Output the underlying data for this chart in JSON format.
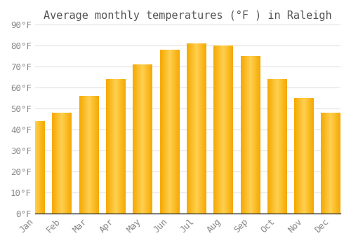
{
  "title": "Average monthly temperatures (°F ) in Raleigh",
  "months": [
    "Jan",
    "Feb",
    "Mar",
    "Apr",
    "May",
    "Jun",
    "Jul",
    "Aug",
    "Sep",
    "Oct",
    "Nov",
    "Dec"
  ],
  "values": [
    44,
    48,
    56,
    64,
    71,
    78,
    81,
    80,
    75,
    64,
    55,
    48
  ],
  "bar_color_left": "#F5A800",
  "bar_color_center": "#FFD050",
  "bar_color_right": "#F5A800",
  "ylim": [
    0,
    90
  ],
  "yticks": [
    0,
    10,
    20,
    30,
    40,
    50,
    60,
    70,
    80,
    90
  ],
  "ytick_labels": [
    "0°F",
    "10°F",
    "20°F",
    "30°F",
    "40°F",
    "50°F",
    "60°F",
    "70°F",
    "80°F",
    "90°F"
  ],
  "background_color": "#ffffff",
  "grid_color": "#e0e0e0",
  "title_fontsize": 11,
  "tick_fontsize": 9,
  "bar_width": 0.72
}
